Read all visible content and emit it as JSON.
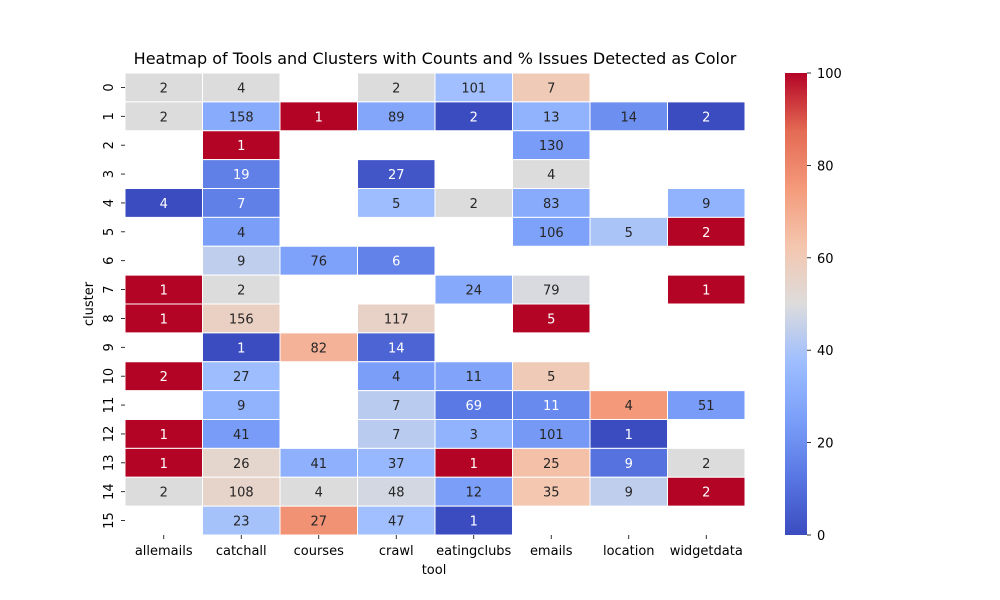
{
  "chart_data": {
    "type": "heatmap",
    "title": "Heatmap of Tools and Clusters with Counts and % Issues Detected as Color",
    "xlabel": "tool",
    "ylabel": "cluster",
    "x_categories": [
      "allemails",
      "catchall",
      "courses",
      "crawl",
      "eatingclubs",
      "emails",
      "location",
      "widgetdata"
    ],
    "y_categories": [
      "0",
      "1",
      "2",
      "3",
      "4",
      "5",
      "6",
      "7",
      "8",
      "9",
      "10",
      "11",
      "12",
      "13",
      "14",
      "15"
    ],
    "counts": [
      [
        2,
        4,
        null,
        2,
        101,
        7,
        null,
        null
      ],
      [
        2,
        158,
        1,
        89,
        2,
        13,
        14,
        2
      ],
      [
        null,
        1,
        null,
        null,
        null,
        130,
        null,
        null
      ],
      [
        null,
        19,
        null,
        27,
        null,
        4,
        null,
        null
      ],
      [
        4,
        7,
        null,
        5,
        2,
        83,
        null,
        9
      ],
      [
        null,
        4,
        null,
        null,
        null,
        106,
        5,
        2
      ],
      [
        null,
        9,
        76,
        6,
        null,
        null,
        null,
        null
      ],
      [
        1,
        2,
        null,
        null,
        24,
        79,
        null,
        1
      ],
      [
        1,
        156,
        null,
        117,
        null,
        5,
        null,
        null
      ],
      [
        null,
        1,
        82,
        14,
        null,
        null,
        null,
        null
      ],
      [
        2,
        27,
        null,
        4,
        11,
        5,
        null,
        null
      ],
      [
        null,
        9,
        null,
        7,
        69,
        11,
        4,
        51
      ],
      [
        1,
        41,
        null,
        7,
        3,
        101,
        1,
        null
      ],
      [
        1,
        26,
        41,
        37,
        1,
        25,
        9,
        2
      ],
      [
        2,
        108,
        4,
        48,
        12,
        35,
        9,
        2
      ],
      [
        null,
        23,
        27,
        47,
        1,
        null,
        null,
        null
      ]
    ],
    "pct_issues": [
      [
        50,
        50,
        null,
        50,
        38,
        60,
        null,
        null
      ],
      [
        50,
        30,
        100,
        28,
        0,
        33,
        20,
        0
      ],
      [
        null,
        100,
        null,
        null,
        null,
        24,
        null,
        null
      ],
      [
        null,
        15,
        null,
        3,
        null,
        50,
        null,
        null
      ],
      [
        0,
        15,
        null,
        37,
        50,
        30,
        null,
        33
      ],
      [
        null,
        25,
        null,
        null,
        null,
        26,
        40,
        100
      ],
      [
        null,
        44,
        26,
        16,
        null,
        null,
        null,
        null
      ],
      [
        100,
        50,
        null,
        null,
        29,
        49,
        null,
        100
      ],
      [
        100,
        57,
        null,
        56,
        null,
        100,
        null,
        null
      ],
      [
        null,
        0,
        68,
        7,
        null,
        null,
        null,
        null
      ],
      [
        100,
        37,
        null,
        25,
        27,
        60,
        null,
        null
      ],
      [
        null,
        33,
        null,
        43,
        13,
        18,
        75,
        24
      ],
      [
        100,
        24,
        null,
        43,
        33,
        23,
        0,
        null
      ],
      [
        100,
        54,
        32,
        35,
        100,
        64,
        11,
        50
      ],
      [
        50,
        55,
        50,
        48,
        25,
        62,
        44,
        100
      ],
      [
        null,
        39,
        77,
        38,
        0,
        null,
        null,
        null
      ]
    ],
    "colorbar": {
      "range": [
        0,
        100
      ],
      "ticks": [
        "0",
        "20",
        "40",
        "60",
        "80",
        "100"
      ],
      "colormap": "coolwarm"
    },
    "grid": false
  }
}
